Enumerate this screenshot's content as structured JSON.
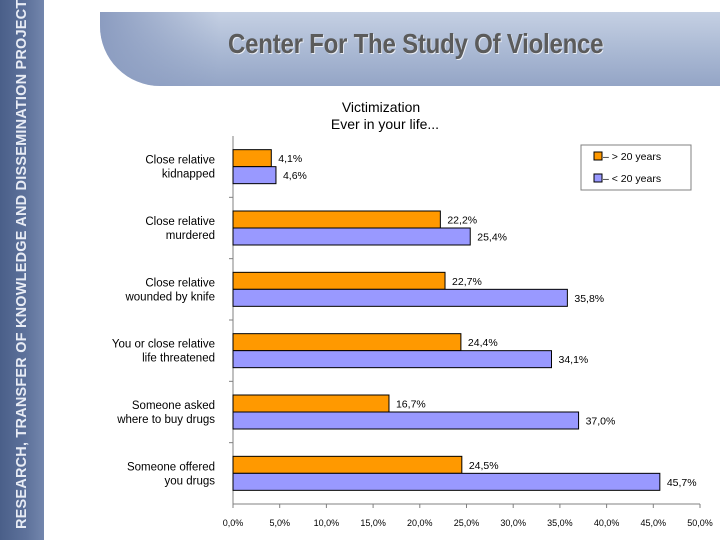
{
  "sidebar": {
    "text": "RESEARCH, TRANSFER OF  KNOWLEDGE AND DISSEMINATION  PROJECTS"
  },
  "header": {
    "title": "Center For The Study Of Violence"
  },
  "colors": {
    "older": "#ff9900",
    "younger": "#9999ff",
    "sidebar": "#5e729b"
  },
  "chart_data": {
    "type": "bar",
    "orientation": "horizontal",
    "title": "Victimization",
    "subtitle": "Ever in your life...",
    "categories": [
      [
        "Close relative",
        "kidnapped"
      ],
      [
        "Close relative",
        "murdered"
      ],
      [
        "Close relative",
        "wounded by knife"
      ],
      [
        "You or close relative",
        "life threatened"
      ],
      [
        "Someone asked",
        "where to buy drugs"
      ],
      [
        "Someone offered",
        "you drugs"
      ]
    ],
    "series": [
      {
        "name": "> 20 years",
        "color": "#ff9900",
        "values": [
          4.1,
          22.2,
          22.7,
          24.4,
          16.7,
          24.5
        ],
        "labels": [
          "4,1%",
          "22,2%",
          "22,7%",
          "24,4%",
          "16,7%",
          "24,5%"
        ]
      },
      {
        "name": "< 20 years",
        "color": "#9999ff",
        "values": [
          4.6,
          25.4,
          35.8,
          34.1,
          37.0,
          45.7
        ],
        "labels": [
          "4,6%",
          "25,4%",
          "35,8%",
          "34,1%",
          "37,0%",
          "45,7%"
        ]
      }
    ],
    "xlim": [
      0,
      50
    ],
    "xticks": [
      0,
      5,
      10,
      15,
      20,
      25,
      30,
      35,
      40,
      45,
      50
    ],
    "xtick_labels": [
      "0,0%",
      "5,0%",
      "10,0%",
      "15,0%",
      "20,0%",
      "25,0%",
      "30,0%",
      "35,0%",
      "40,0%",
      "45,0%",
      "50,0%"
    ],
    "legend_position": "top-right",
    "grid": false
  }
}
